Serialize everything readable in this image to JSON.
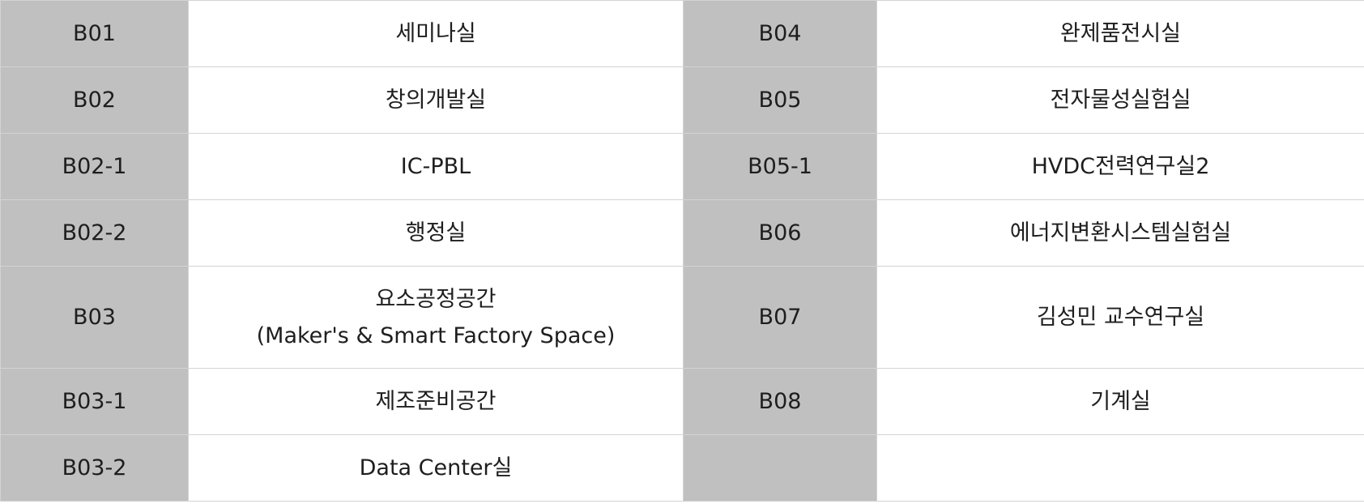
{
  "rooms": {
    "rows": [
      {
        "left_code": "B01",
        "left_name": "세미나실",
        "right_code": "B04",
        "right_name": "완제품전시실"
      },
      {
        "left_code": "B02",
        "left_name": "창의개발실",
        "right_code": "B05",
        "right_name": "전자물성실험실"
      },
      {
        "left_code": "B02-1",
        "left_name": "IC-PBL",
        "right_code": "B05-1",
        "right_name": "HVDC전력연구실2"
      },
      {
        "left_code": "B02-2",
        "left_name": "행정실",
        "right_code": "B06",
        "right_name": "에너지변환시스템실험실"
      },
      {
        "left_code": "B03",
        "left_name_line1": "요소공정공간",
        "left_name_line2": "(Maker's & Smart Factory Space)",
        "right_code": "B07",
        "right_name": "김성민 교수연구실"
      },
      {
        "left_code": "B03-1",
        "left_name": "제조준비공간",
        "right_code": "B08",
        "right_name": "기계실"
      },
      {
        "left_code": "B03-2",
        "left_name": "Data Center실",
        "right_code": "",
        "right_name": ""
      }
    ]
  },
  "colors": {
    "code_cell_bg": "#c0c0c0",
    "name_cell_bg": "#ffffff",
    "border": "#d3d3d3",
    "text": "#1e1e1e"
  }
}
